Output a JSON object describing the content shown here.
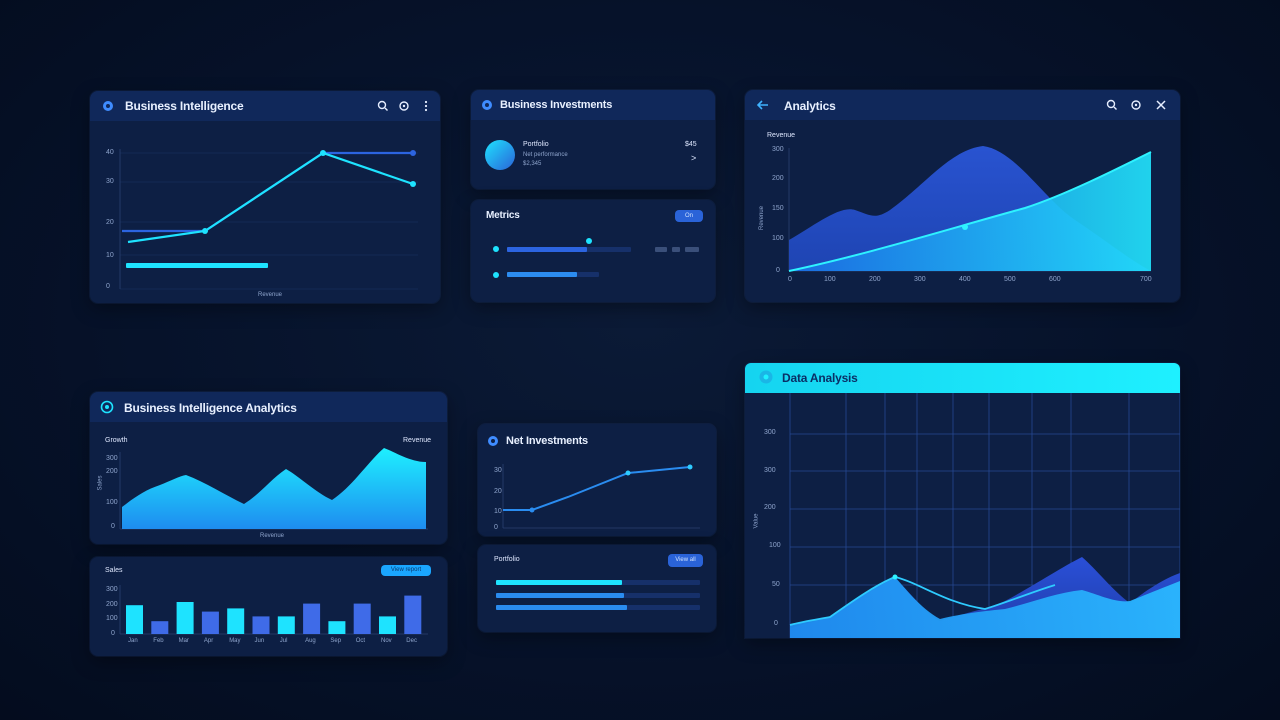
{
  "colors": {
    "bg": "#06122a",
    "panel": "#0d1f44",
    "header": "#10285a",
    "cyan": "#1ee3ff",
    "blue": "#2a63d8",
    "grid": "#1d3766"
  },
  "icons": [
    "logo-icon",
    "search-icon",
    "settings-icon",
    "more-icon",
    "back-icon",
    "close-icon",
    "chevron-right-icon"
  ],
  "panel_bi": {
    "title": "Business Intelligence",
    "y_ticks": [
      "40",
      "30",
      "20",
      "10",
      "0"
    ],
    "x_caption": "Revenue"
  },
  "panel_bi_inv": {
    "title": "Business Investments",
    "item_title": "Portfolio",
    "item_line1": "Net performance",
    "item_line2": "$2,345",
    "item_value": "$45",
    "item_arrow": ">"
  },
  "panel_metrics": {
    "title": "Metrics",
    "toggle": "On"
  },
  "panel_analytics": {
    "title": "Analytics",
    "subtitle": "Revenue",
    "y_label": "Revenue",
    "y_ticks": [
      "300",
      "200",
      "150",
      "100",
      "0"
    ],
    "x_ticks": [
      "0",
      "100",
      "200",
      "300",
      "400",
      "500",
      "600",
      "700"
    ]
  },
  "panel_bi_analytics": {
    "title": "Business Intelligence Analytics",
    "legend_left": "Growth",
    "legend_right": "Revenue",
    "y_ticks": [
      "300",
      "200",
      "100",
      "0"
    ],
    "y_label": "Sales",
    "x_caption": "Revenue"
  },
  "panel_bars": {
    "title": "Sales",
    "button": "View report",
    "y_ticks": [
      "300",
      "200",
      "100",
      "0"
    ],
    "x_ticks": [
      "Jan",
      "Feb",
      "Mar",
      "Apr",
      "May",
      "Jun",
      "Jul",
      "Aug",
      "Sep",
      "Oct",
      "Nov",
      "Dec"
    ]
  },
  "panel_inv2": {
    "title": "Net Investments",
    "y_ticks": [
      "30",
      "20",
      "10",
      "0"
    ]
  },
  "panel_progress": {
    "title": "Portfolio",
    "button": "View all"
  },
  "panel_analysis": {
    "title": "Data Analysis",
    "y_ticks": [
      "300",
      "300",
      "200",
      "100",
      "50",
      "0"
    ],
    "y_label": "Value"
  },
  "chart_data": [
    {
      "type": "line",
      "series": [
        {
          "values": [
            [
              0,
              18
            ],
            [
              10,
              20
            ],
            [
              25,
              38
            ],
            [
              35,
              36
            ]
          ]
        },
        {
          "values": [
            [
              0,
              20
            ],
            [
              25,
              38
            ],
            [
              35,
              38
            ]
          ]
        }
      ]
    },
    {
      "type": "area",
      "series": [
        {
          "values": [
            0,
            40,
            20,
            95,
            40,
            90
          ]
        },
        {
          "values": [
            0,
            20,
            40,
            60,
            80,
            100
          ]
        }
      ]
    },
    {
      "type": "area",
      "series": [
        {
          "values": [
            30,
            50,
            60,
            40,
            20,
            60,
            30,
            80,
            70
          ]
        }
      ]
    },
    {
      "type": "bar",
      "categories": [
        "Jan",
        "Feb",
        "Mar",
        "Apr",
        "May",
        "Jun",
        "Jul",
        "Aug",
        "Sep",
        "Oct",
        "Nov",
        "Dec"
      ],
      "values": [
        180,
        80,
        200,
        140,
        160,
        110,
        110,
        190,
        80,
        190,
        110,
        240
      ]
    },
    {
      "type": "line",
      "series": [
        {
          "values": [
            [
              0,
              0
            ],
            [
              1,
              0
            ],
            [
              2,
              2
            ],
            [
              3,
              5
            ],
            [
              4,
              6
            ]
          ]
        }
      ]
    },
    {
      "type": "area",
      "series": [
        {
          "values": [
            10,
            20,
            80,
            20,
            40,
            90,
            40,
            70
          ]
        },
        {
          "values": [
            10,
            20,
            90,
            10,
            30,
            50,
            30,
            70
          ]
        }
      ]
    }
  ]
}
